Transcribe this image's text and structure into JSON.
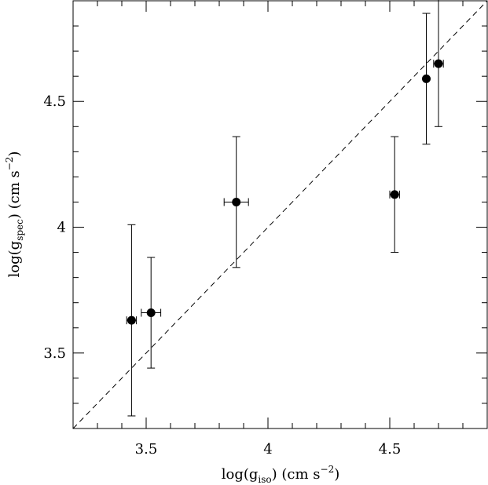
{
  "chart_data": {
    "type": "scatter",
    "title": "",
    "xlabel": {
      "main": "log(g",
      "sub": "iso",
      "tail": ")  (cm  s",
      "sup": "−2",
      "end": ")"
    },
    "ylabel": {
      "main": "log(g",
      "sub": "spec",
      "tail": ")  (cm  s",
      "sup": "−2",
      "end": ")"
    },
    "xlim": [
      3.2,
      4.9
    ],
    "ylim": [
      3.2,
      4.9
    ],
    "x_ticks": [
      3.5,
      4,
      4.5
    ],
    "x_tick_labels": [
      "3.5",
      "4",
      "4.5"
    ],
    "y_ticks": [
      3.5,
      4,
      4.5
    ],
    "y_tick_labels": [
      "3.5",
      "4",
      "4.5"
    ],
    "x_minor_step": 0.1,
    "y_minor_step": 0.1,
    "grid": false,
    "reference_line": {
      "style": "dashed",
      "slope": 1,
      "intercept": 0
    },
    "points": [
      {
        "x": 3.44,
        "y": 3.63,
        "xerr": 0.02,
        "yerr_low": 0.38,
        "yerr_high": 0.38
      },
      {
        "x": 3.52,
        "y": 3.66,
        "xerr": 0.04,
        "yerr_low": 0.22,
        "yerr_high": 0.22
      },
      {
        "x": 3.87,
        "y": 4.1,
        "xerr": 0.05,
        "yerr_low": 0.26,
        "yerr_high": 0.26
      },
      {
        "x": 4.52,
        "y": 4.13,
        "xerr": 0.02,
        "yerr_low": 0.23,
        "yerr_high": 0.23
      },
      {
        "x": 4.65,
        "y": 4.59,
        "xerr": 0.0,
        "yerr_low": 0.26,
        "yerr_high": 0.26
      },
      {
        "x": 4.7,
        "y": 4.65,
        "xerr": 0.02,
        "yerr_low": 0.25,
        "yerr_high": 0.27
      }
    ]
  }
}
